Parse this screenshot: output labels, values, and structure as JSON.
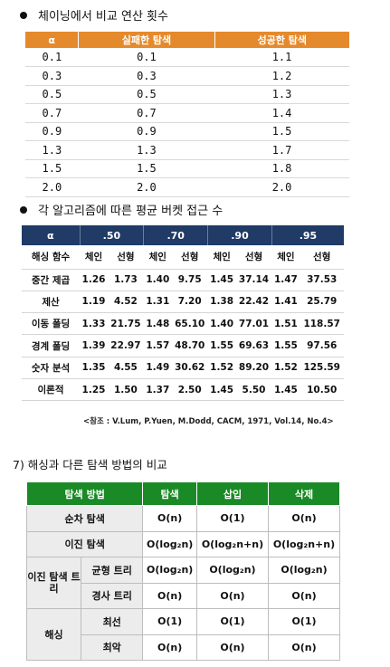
{
  "section1": {
    "title": "체이닝에서 비교 연산 횟수",
    "headers": [
      "α",
      "실패한 탐색",
      "성공한 탐색"
    ],
    "rows": [
      [
        "0.1",
        "0.1",
        "1.1"
      ],
      [
        "0.3",
        "0.3",
        "1.2"
      ],
      [
        "0.5",
        "0.5",
        "1.3"
      ],
      [
        "0.7",
        "0.7",
        "1.4"
      ],
      [
        "0.9",
        "0.9",
        "1.5"
      ],
      [
        "1.3",
        "1.3",
        "1.7"
      ],
      [
        "1.5",
        "1.5",
        "1.8"
      ],
      [
        "2.0",
        "2.0",
        "2.0"
      ]
    ],
    "header_color": "#e58a2c"
  },
  "section2": {
    "title": "각 알고리즘에 따른 평균 버켓 접근 수",
    "headers": [
      "α",
      ".50",
      ".70",
      ".90",
      ".95"
    ],
    "subheaders": [
      "해싱 함수",
      "체인",
      "선형",
      "체인",
      "선형",
      "체인",
      "선형",
      "체인",
      "선형"
    ],
    "rows": [
      [
        "중간 제곱",
        "1.26",
        "1.73",
        "1.40",
        "9.75",
        "1.45",
        "37.14",
        "1.47",
        "37.53"
      ],
      [
        "제산",
        "1.19",
        "4.52",
        "1.31",
        "7.20",
        "1.38",
        "22.42",
        "1.41",
        "25.79"
      ],
      [
        "이동 폴딩",
        "1.33",
        "21.75",
        "1.48",
        "65.10",
        "1.40",
        "77.01",
        "1.51",
        "118.57"
      ],
      [
        "경계 폴딩",
        "1.39",
        "22.97",
        "1.57",
        "48.70",
        "1.55",
        "69.63",
        "1.55",
        "97.56"
      ],
      [
        "숫자 분석",
        "1.35",
        "4.55",
        "1.49",
        "30.62",
        "1.52",
        "89.20",
        "1.52",
        "125.59"
      ],
      [
        "이론적",
        "1.25",
        "1.50",
        "1.37",
        "2.50",
        "1.45",
        "5.50",
        "1.45",
        "10.50"
      ]
    ],
    "citation": "<참조 : V.Lum, P.Yuen, M.Dodd, CACM, 1971, Vol.14, No.4>",
    "header_color": "#1f3b66"
  },
  "section3": {
    "title": "7) 해싱과 다른 탐색 방법의 비교",
    "headers": [
      "탐색 방법",
      "탐색",
      "삽입",
      "삭제"
    ],
    "rows": {
      "sequential": {
        "label": "순차 탐색",
        "values": [
          "O(n)",
          "O(1)",
          "O(n)"
        ]
      },
      "binary": {
        "label": "이진 탐색",
        "values": [
          "O(log₂n)",
          "O(log₂n+n)",
          "O(log₂n+n)"
        ]
      },
      "bst_label": "이진 탐색 트리",
      "bst_balanced": {
        "label": "균형 트리",
        "values": [
          "O(log₂n)",
          "O(log₂n)",
          "O(log₂n)"
        ]
      },
      "bst_skewed": {
        "label": "경사 트리",
        "values": [
          "O(n)",
          "O(n)",
          "O(n)"
        ]
      },
      "hash_label": "해싱",
      "hash_best": {
        "label": "최선",
        "values": [
          "O(1)",
          "O(1)",
          "O(1)"
        ]
      },
      "hash_worst": {
        "label": "최악",
        "values": [
          "O(n)",
          "O(n)",
          "O(n)"
        ]
      }
    },
    "header_color": "#198a25"
  }
}
